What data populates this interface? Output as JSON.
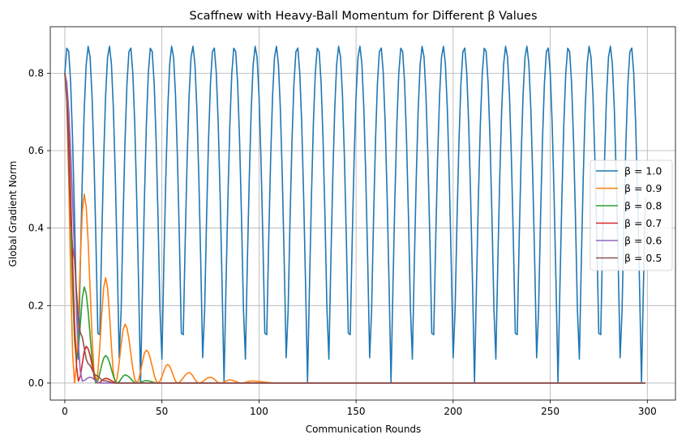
{
  "chart_data": {
    "type": "line",
    "title": "Scaffnew with Heavy-Ball Momentum for Different β Values",
    "xlabel": "Communication Rounds",
    "ylabel": "Global Gradient Norm",
    "xlim": [
      -7.5,
      314.5
    ],
    "ylim": [
      -0.044,
      0.92
    ],
    "xticks": [
      0,
      50,
      100,
      150,
      200,
      250,
      300
    ],
    "yticks": [
      0.0,
      0.2,
      0.4,
      0.6,
      0.8
    ],
    "xtick_labels": [
      "0",
      "50",
      "100",
      "150",
      "200",
      "250",
      "300"
    ],
    "ytick_labels": [
      "0.0",
      "0.2",
      "0.4",
      "0.6",
      "0.8"
    ],
    "grid": true,
    "legend_position": "center-right",
    "x_range": [
      0,
      299
    ],
    "series": [
      {
        "name": "β = 1.0",
        "color": "#1f77b4",
        "amplitude": 0.87,
        "period": 10.75,
        "initial": 0.8
      },
      {
        "name": "β = 0.9",
        "color": "#ff7f0e",
        "peaks": [
          [
            0,
            0.8
          ],
          [
            5,
            0.0
          ],
          [
            10,
            0.488
          ],
          [
            16,
            0.0
          ],
          [
            21,
            0.272
          ],
          [
            26,
            0.0
          ],
          [
            31,
            0.152
          ],
          [
            37,
            0.0
          ],
          [
            42,
            0.085
          ],
          [
            48,
            0.0
          ],
          [
            53,
            0.048
          ],
          [
            58,
            0.0
          ],
          [
            64,
            0.027
          ],
          [
            69,
            0.0
          ],
          [
            75,
            0.015
          ],
          [
            80,
            0.0
          ],
          [
            85,
            0.008
          ],
          [
            91,
            0.0
          ],
          [
            96,
            0.005
          ],
          [
            110,
            0.0
          ],
          [
            299,
            0.0
          ]
        ]
      },
      {
        "name": "β = 0.8",
        "color": "#2ca02c",
        "peaks": [
          [
            0,
            0.8
          ],
          [
            6,
            0.06
          ],
          [
            10,
            0.248
          ],
          [
            16,
            0.0
          ],
          [
            21,
            0.071
          ],
          [
            27,
            0.0
          ],
          [
            31,
            0.021
          ],
          [
            37,
            0.0
          ],
          [
            42,
            0.006
          ],
          [
            48,
            0.0
          ],
          [
            299,
            0.0
          ]
        ]
      },
      {
        "name": "β = 0.7",
        "color": "#d62728",
        "peaks": [
          [
            0,
            0.8
          ],
          [
            7,
            0.005
          ],
          [
            11,
            0.095
          ],
          [
            17,
            0.0
          ],
          [
            21,
            0.012
          ],
          [
            27,
            0.0
          ],
          [
            299,
            0.0
          ]
        ]
      },
      {
        "name": "β = 0.6",
        "color": "#9467bd",
        "peaks": [
          [
            0,
            0.8
          ],
          [
            9,
            0.005
          ],
          [
            13,
            0.015
          ],
          [
            18,
            0.0
          ],
          [
            299,
            0.0
          ]
        ]
      },
      {
        "name": "β = 0.5",
        "color": "#8c564b",
        "peaks": [
          [
            0,
            0.8
          ],
          [
            4,
            0.35
          ],
          [
            8,
            0.13
          ],
          [
            12,
            0.05
          ],
          [
            16,
            0.02
          ],
          [
            20,
            0.006
          ],
          [
            26,
            0.0
          ],
          [
            299,
            0.0
          ]
        ]
      }
    ]
  }
}
